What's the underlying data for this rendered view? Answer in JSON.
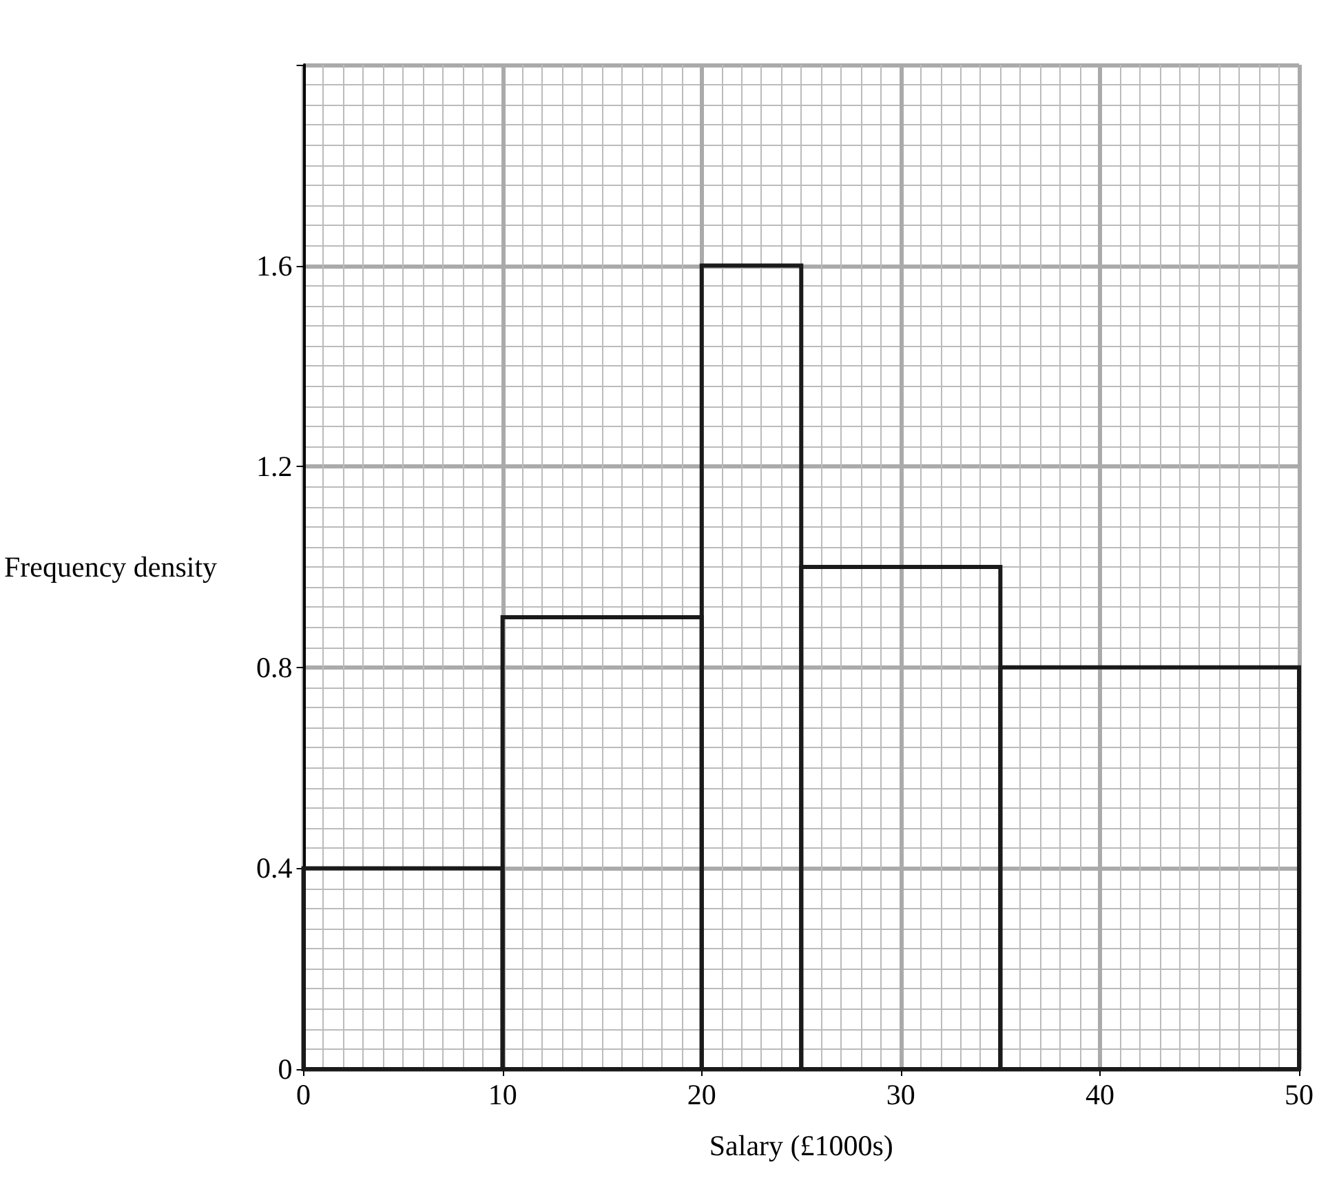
{
  "chart_data": {
    "type": "histogram",
    "xlabel": "Salary (£1000s)",
    "ylabel": "Frequency density",
    "bins": [
      0,
      10,
      20,
      25,
      35,
      50
    ],
    "values": [
      0.4,
      0.9,
      1.6,
      1.0,
      0.8
    ],
    "color": "#1a1a1a",
    "xlim": [
      0,
      50
    ],
    "xticks": [
      0,
      10,
      20,
      30,
      40,
      50
    ],
    "ylim": [
      0,
      2
    ],
    "yticks": [
      0,
      0.4,
      0.8,
      1.2,
      1.6,
      {
        "value": 2,
        "label": null
      }
    ],
    "grid": true
  }
}
